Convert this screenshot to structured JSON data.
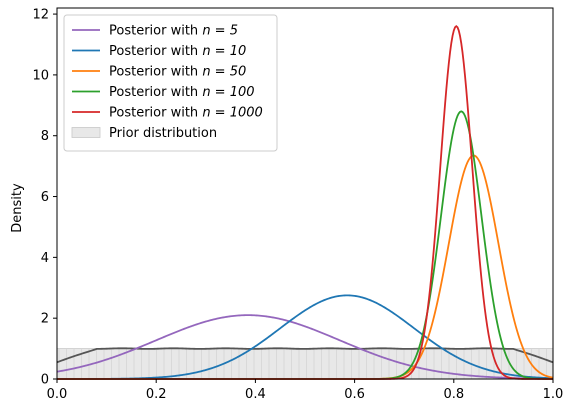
{
  "chart_data": {
    "type": "area",
    "xlabel": "",
    "ylabel": "Density",
    "xlim": [
      0,
      1
    ],
    "ylim": [
      0,
      12.2
    ],
    "x_ticks": [
      "0.0",
      "0.2",
      "0.4",
      "0.6",
      "0.8",
      "1.0"
    ],
    "y_ticks": [
      "0",
      "2",
      "4",
      "6",
      "8",
      "10",
      "12"
    ],
    "grid": false,
    "legend_position": "upper-left",
    "series": [
      {
        "name": "Posterior with n = 5",
        "legend_prefix": "Posterior with ",
        "legend_math": "n = 5",
        "color": "#9467bd",
        "mode": 0.385,
        "peak": 2.1,
        "sigma": 0.185
      },
      {
        "name": "Posterior with n = 10",
        "legend_prefix": "Posterior with ",
        "legend_math": "n = 10",
        "color": "#1f77b4",
        "mode": 0.585,
        "peak": 2.75,
        "sigma": 0.135
      },
      {
        "name": "Posterior with n = 50",
        "legend_prefix": "Posterior with ",
        "legend_math": "n = 50",
        "color": "#ff7f0e",
        "mode": 0.84,
        "peak": 7.35,
        "sigma": 0.05
      },
      {
        "name": "Posterior with n = 100",
        "legend_prefix": "Posterior with ",
        "legend_math": "n = 100",
        "color": "#2ca02c",
        "mode": 0.815,
        "peak": 8.8,
        "sigma": 0.041
      },
      {
        "name": "Posterior with n = 1000",
        "legend_prefix": "Posterior with ",
        "legend_math": "n = 1000",
        "color": "#d62728",
        "mode": 0.805,
        "peak": 11.6,
        "sigma": 0.032
      }
    ],
    "prior": {
      "name": "Prior distribution",
      "density": 1.0,
      "fill": "#e8e8e8",
      "line_color": "#555555"
    }
  }
}
